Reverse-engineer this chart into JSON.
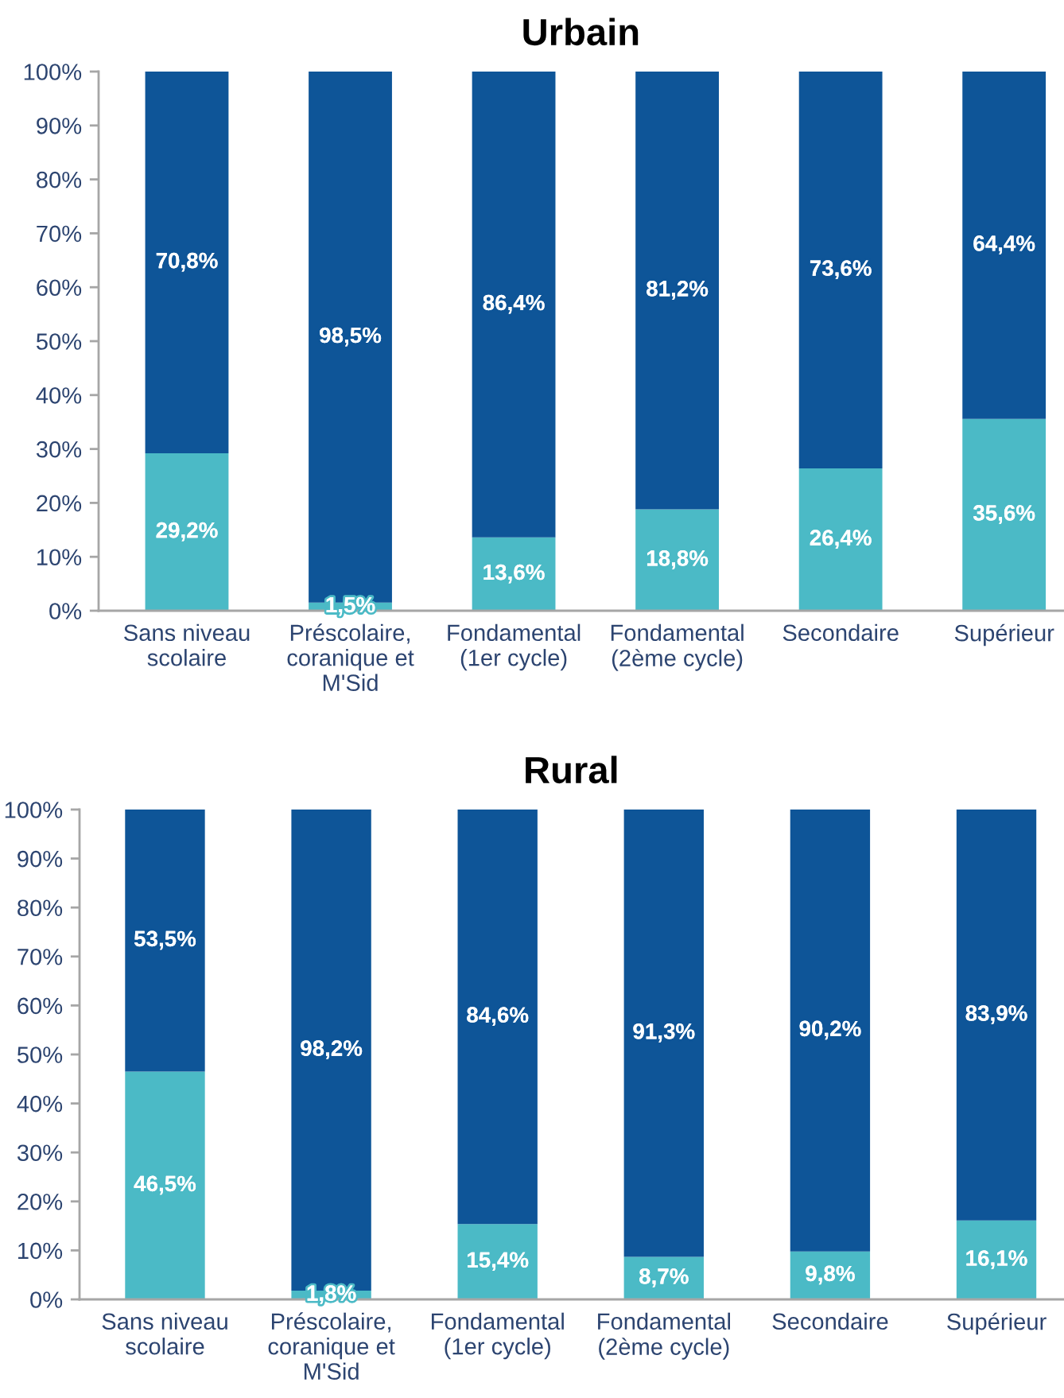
{
  "chart_data": [
    {
      "type": "bar",
      "title": "Urbain",
      "stacked": true,
      "categories": [
        "Sans niveau\nscolaire",
        "Préscolaire,\ncoranique et\nM'Sid",
        "Fondamental\n(1er cycle)",
        "Fondamental\n(2ème cycle)",
        "Secondaire",
        "Supérieur"
      ],
      "series": [
        {
          "color": "#4bbac6",
          "values": [
            29.2,
            1.5,
            13.6,
            18.8,
            26.4,
            35.6
          ],
          "value_labels": [
            "29,2%",
            "1,5%",
            "13,6%",
            "18,8%",
            "26,4%",
            "35,6%"
          ]
        },
        {
          "color": "#0e5598",
          "values": [
            70.8,
            98.5,
            86.4,
            81.2,
            73.6,
            64.4
          ],
          "value_labels": [
            "70,8%",
            "98,5%",
            "86,4%",
            "81,2%",
            "73,6%",
            "64,4%"
          ]
        }
      ],
      "ylim": [
        0,
        100
      ],
      "yticks": [
        {
          "value": 0,
          "label": "0%"
        },
        {
          "value": 10,
          "label": "10%"
        },
        {
          "value": 20,
          "label": "20%"
        },
        {
          "value": 30,
          "label": "30%"
        },
        {
          "value": 40,
          "label": "40%"
        },
        {
          "value": 50,
          "label": "50%"
        },
        {
          "value": 60,
          "label": "60%"
        },
        {
          "value": 70,
          "label": "70%"
        },
        {
          "value": 80,
          "label": "80%"
        },
        {
          "value": 90,
          "label": "90%"
        },
        {
          "value": 100,
          "label": "100%"
        }
      ]
    },
    {
      "type": "bar",
      "title": "Rural",
      "stacked": true,
      "categories": [
        "Sans niveau\nscolaire",
        "Préscolaire,\ncoranique et\nM'Sid",
        "Fondamental\n(1er cycle)",
        "Fondamental\n(2ème cycle)",
        "Secondaire",
        "Supérieur"
      ],
      "series": [
        {
          "color": "#4bbac6",
          "values": [
            46.5,
            1.8,
            15.4,
            8.7,
            9.8,
            16.1
          ],
          "value_labels": [
            "46,5%",
            "1,8%",
            "15,4%",
            "8,7%",
            "9,8%",
            "16,1%"
          ]
        },
        {
          "color": "#0e5598",
          "values": [
            53.5,
            98.2,
            84.6,
            91.3,
            90.2,
            83.9
          ],
          "value_labels": [
            "53,5%",
            "98,2%",
            "84,6%",
            "91,3%",
            "90,2%",
            "83,9%"
          ]
        }
      ],
      "ylim": [
        0,
        100
      ],
      "yticks": [
        {
          "value": 0,
          "label": "0%"
        },
        {
          "value": 10,
          "label": "10%"
        },
        {
          "value": 20,
          "label": "20%"
        },
        {
          "value": 30,
          "label": "30%"
        },
        {
          "value": 40,
          "label": "40%"
        },
        {
          "value": 50,
          "label": "50%"
        },
        {
          "value": 60,
          "label": "60%"
        },
        {
          "value": 70,
          "label": "70%"
        },
        {
          "value": 80,
          "label": "80%"
        },
        {
          "value": 90,
          "label": "90%"
        },
        {
          "value": 100,
          "label": "100%"
        }
      ]
    }
  ]
}
